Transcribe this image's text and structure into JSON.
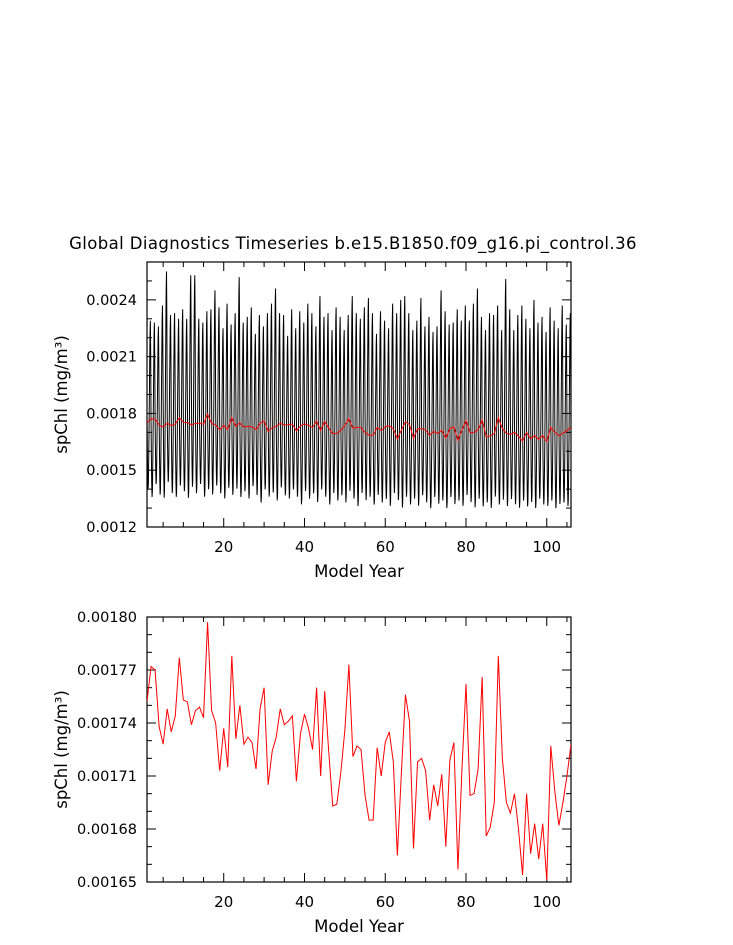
{
  "figure": {
    "title": "Global Diagnostics Timeseries b.e15.B1850.f09_g16.pi_control.36"
  },
  "chart_data": [
    {
      "type": "line",
      "title": "Global Diagnostics Timeseries b.e15.B1850.f09_g16.pi_control.36",
      "xlabel": "Model Year",
      "ylabel": "spChl (mg/m³)",
      "xlim": [
        1,
        106
      ],
      "ylim": [
        0.0012,
        0.0026
      ],
      "x_ticks": [
        20,
        40,
        60,
        80,
        100
      ],
      "y_ticks": [
        0.0012,
        0.0015,
        0.0018,
        0.0021,
        0.0024
      ],
      "y_tick_labels": [
        "0.0012",
        "0.0015",
        "0.0018",
        "0.0021",
        "0.0024"
      ],
      "series": [
        {
          "kind": "monthly",
          "color": "#000000",
          "months_per_year": 12,
          "monthly_climatology_fraction": [
            0.45,
            0.26,
            0.1,
            0.02,
            0.05,
            0.18,
            0.35,
            0.55,
            0.75,
            0.93,
            1.0,
            0.8
          ],
          "yearly_max": [
            0.00229,
            0.00228,
            0.00226,
            0.00237,
            0.00255,
            0.00232,
            0.00233,
            0.0023,
            0.00235,
            0.0023,
            0.00253,
            0.00253,
            0.0023,
            0.00228,
            0.00234,
            0.00235,
            0.00245,
            0.00236,
            0.00225,
            0.00238,
            0.00227,
            0.00233,
            0.00252,
            0.00228,
            0.00231,
            0.00236,
            0.00222,
            0.00232,
            0.00226,
            0.00233,
            0.00238,
            0.00246,
            0.00233,
            0.00232,
            0.00221,
            0.00235,
            0.00225,
            0.00234,
            0.00228,
            0.00238,
            0.00233,
            0.00226,
            0.00242,
            0.00231,
            0.00233,
            0.00224,
            0.00236,
            0.00231,
            0.00224,
            0.00232,
            0.00242,
            0.00233,
            0.0023,
            0.00236,
            0.00241,
            0.00233,
            0.00222,
            0.00234,
            0.00229,
            0.00225,
            0.00238,
            0.00233,
            0.0024,
            0.00242,
            0.00233,
            0.00224,
            0.00229,
            0.00241,
            0.00226,
            0.00231,
            0.00223,
            0.00226,
            0.00245,
            0.00234,
            0.00227,
            0.00228,
            0.00235,
            0.00229,
            0.00237,
            0.00229,
            0.00238,
            0.00246,
            0.00231,
            0.00224,
            0.00233,
            0.00232,
            0.00237,
            0.00224,
            0.00251,
            0.00235,
            0.00224,
            0.00232,
            0.00237,
            0.0023,
            0.00225,
            0.0024,
            0.00228,
            0.00231,
            0.00223,
            0.00236,
            0.00229,
            0.00225,
            0.00237,
            0.00227,
            0.00233,
            0.00229
          ],
          "yearly_min": [
            0.00138,
            0.00134,
            0.00141,
            0.00135,
            0.00133,
            0.00142,
            0.00136,
            0.00134,
            0.0014,
            0.00137,
            0.00133,
            0.00139,
            0.00136,
            0.00141,
            0.00134,
            0.00138,
            0.00135,
            0.0014,
            0.00136,
            0.00133,
            0.00139,
            0.00135,
            0.00138,
            0.00134,
            0.00137,
            0.00133,
            0.0014,
            0.00135,
            0.00131,
            0.00138,
            0.00134,
            0.00136,
            0.00132,
            0.00139,
            0.00135,
            0.00133,
            0.00138,
            0.00134,
            0.0013,
            0.00137,
            0.00133,
            0.00136,
            0.00131,
            0.00138,
            0.00134,
            0.0013,
            0.00136,
            0.00132,
            0.00135,
            0.00131,
            0.00137,
            0.00133,
            0.00129,
            0.00136,
            0.00132,
            0.00134,
            0.0013,
            0.00135,
            0.00131,
            0.00133,
            0.00129,
            0.00136,
            0.00132,
            0.00128,
            0.00134,
            0.0013,
            0.00133,
            0.00129,
            0.00135,
            0.00131,
            0.00128,
            0.00134,
            0.0013,
            0.00132,
            0.00128,
            0.00134,
            0.0013,
            0.00132,
            0.00129,
            0.00135,
            0.00131,
            0.00128,
            0.00133,
            0.00129,
            0.00131,
            0.00128,
            0.00134,
            0.0013,
            0.00132,
            0.00129,
            0.00133,
            0.0013,
            0.00128,
            0.00132,
            0.00129,
            0.00131,
            0.00128,
            0.00133,
            0.0013,
            0.00129,
            0.00132,
            0.00128,
            0.0013,
            0.00131,
            0.00129,
            0.00132
          ]
        },
        {
          "kind": "annual_mean",
          "color": "#ff0000",
          "x": [
            1,
            2,
            3,
            4,
            5,
            6,
            7,
            8,
            9,
            10,
            11,
            12,
            13,
            14,
            15,
            16,
            17,
            18,
            19,
            20,
            21,
            22,
            23,
            24,
            25,
            26,
            27,
            28,
            29,
            30,
            31,
            32,
            33,
            34,
            35,
            36,
            37,
            38,
            39,
            40,
            41,
            42,
            43,
            44,
            45,
            46,
            47,
            48,
            49,
            50,
            51,
            52,
            53,
            54,
            55,
            56,
            57,
            58,
            59,
            60,
            61,
            62,
            63,
            64,
            65,
            66,
            67,
            68,
            69,
            70,
            71,
            72,
            73,
            74,
            75,
            76,
            77,
            78,
            79,
            80,
            81,
            82,
            83,
            84,
            85,
            86,
            87,
            88,
            89,
            90,
            91,
            92,
            93,
            94,
            95,
            96,
            97,
            98,
            99,
            100,
            101,
            102,
            103,
            104,
            105,
            106
          ],
          "y": [
            0.001752,
            0.001772,
            0.00177,
            0.001738,
            0.001728,
            0.001748,
            0.001735,
            0.001744,
            0.001777,
            0.001753,
            0.001752,
            0.001739,
            0.001747,
            0.001749,
            0.001743,
            0.001797,
            0.001747,
            0.00174,
            0.001713,
            0.001737,
            0.001715,
            0.001778,
            0.001731,
            0.00175,
            0.001728,
            0.001732,
            0.001729,
            0.001714,
            0.001748,
            0.00176,
            0.001705,
            0.001724,
            0.001732,
            0.001748,
            0.001739,
            0.001741,
            0.001744,
            0.001707,
            0.001734,
            0.001745,
            0.001737,
            0.001725,
            0.00176,
            0.00171,
            0.001758,
            0.001724,
            0.001693,
            0.001694,
            0.001712,
            0.001736,
            0.001773,
            0.001721,
            0.001727,
            0.001725,
            0.001699,
            0.001685,
            0.001685,
            0.001726,
            0.00171,
            0.001729,
            0.001735,
            0.001718,
            0.001665,
            0.001712,
            0.001756,
            0.001741,
            0.001669,
            0.001718,
            0.00172,
            0.001713,
            0.001685,
            0.001705,
            0.001693,
            0.001711,
            0.00167,
            0.001719,
            0.001729,
            0.001657,
            0.001714,
            0.001762,
            0.001699,
            0.0017,
            0.001714,
            0.001766,
            0.001676,
            0.001681,
            0.001695,
            0.001778,
            0.00172,
            0.001695,
            0.001689,
            0.0017,
            0.00168,
            0.001654,
            0.0017,
            0.001666,
            0.001683,
            0.001663,
            0.001683,
            0.001651,
            0.001727,
            0.001701,
            0.001682,
            0.001695,
            0.00171,
            0.001728
          ]
        }
      ]
    },
    {
      "type": "line",
      "title": "",
      "xlabel": "Model Year",
      "ylabel": "spChl (mg/m³)",
      "xlim": [
        1,
        106
      ],
      "ylim": [
        0.00165,
        0.0018
      ],
      "x_ticks": [
        20,
        40,
        60,
        80,
        100
      ],
      "y_ticks": [
        0.00165,
        0.00168,
        0.00171,
        0.00174,
        0.00177,
        0.0018
      ],
      "y_tick_labels": [
        "0.00165",
        "0.00168",
        "0.00171",
        "0.00174",
        "0.00177",
        "0.00180"
      ],
      "series": [
        {
          "kind": "annual_mean",
          "color": "#ff0000",
          "x": [
            1,
            2,
            3,
            4,
            5,
            6,
            7,
            8,
            9,
            10,
            11,
            12,
            13,
            14,
            15,
            16,
            17,
            18,
            19,
            20,
            21,
            22,
            23,
            24,
            25,
            26,
            27,
            28,
            29,
            30,
            31,
            32,
            33,
            34,
            35,
            36,
            37,
            38,
            39,
            40,
            41,
            42,
            43,
            44,
            45,
            46,
            47,
            48,
            49,
            50,
            51,
            52,
            53,
            54,
            55,
            56,
            57,
            58,
            59,
            60,
            61,
            62,
            63,
            64,
            65,
            66,
            67,
            68,
            69,
            70,
            71,
            72,
            73,
            74,
            75,
            76,
            77,
            78,
            79,
            80,
            81,
            82,
            83,
            84,
            85,
            86,
            87,
            88,
            89,
            90,
            91,
            92,
            93,
            94,
            95,
            96,
            97,
            98,
            99,
            100,
            101,
            102,
            103,
            104,
            105,
            106
          ],
          "y": [
            0.001752,
            0.001772,
            0.00177,
            0.001738,
            0.001728,
            0.001748,
            0.001735,
            0.001744,
            0.001777,
            0.001753,
            0.001752,
            0.001739,
            0.001747,
            0.001749,
            0.001743,
            0.001797,
            0.001747,
            0.00174,
            0.001713,
            0.001737,
            0.001715,
            0.001778,
            0.001731,
            0.00175,
            0.001728,
            0.001732,
            0.001729,
            0.001714,
            0.001748,
            0.00176,
            0.001705,
            0.001724,
            0.001732,
            0.001748,
            0.001739,
            0.001741,
            0.001744,
            0.001707,
            0.001734,
            0.001745,
            0.001737,
            0.001725,
            0.00176,
            0.00171,
            0.001758,
            0.001724,
            0.001693,
            0.001694,
            0.001712,
            0.001736,
            0.001773,
            0.001721,
            0.001727,
            0.001725,
            0.001699,
            0.001685,
            0.001685,
            0.001726,
            0.00171,
            0.001729,
            0.001735,
            0.001718,
            0.001665,
            0.001712,
            0.001756,
            0.001741,
            0.001669,
            0.001718,
            0.00172,
            0.001713,
            0.001685,
            0.001705,
            0.001693,
            0.001711,
            0.00167,
            0.001719,
            0.001729,
            0.001657,
            0.001714,
            0.001762,
            0.001699,
            0.0017,
            0.001714,
            0.001766,
            0.001676,
            0.001681,
            0.001695,
            0.001778,
            0.00172,
            0.001695,
            0.001689,
            0.0017,
            0.00168,
            0.001654,
            0.0017,
            0.001666,
            0.001683,
            0.001663,
            0.001683,
            0.001651,
            0.001727,
            0.001701,
            0.001682,
            0.001695,
            0.00171,
            0.001728
          ]
        }
      ]
    }
  ]
}
